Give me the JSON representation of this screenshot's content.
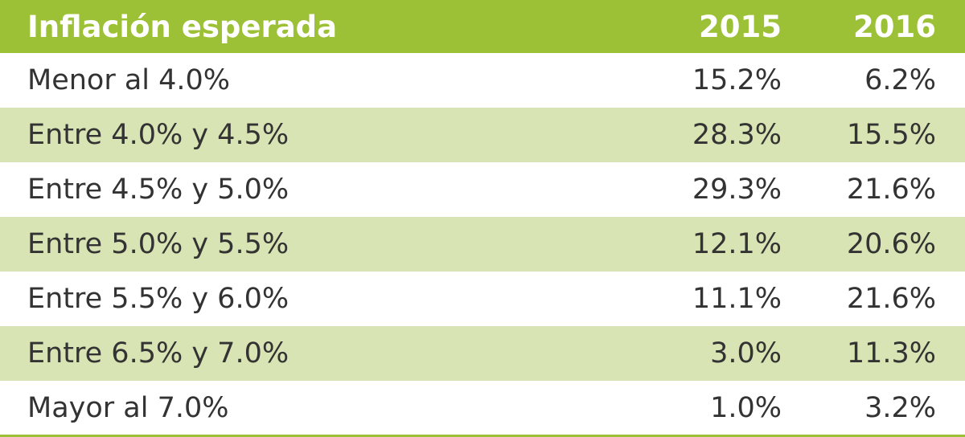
{
  "chart_data": {
    "type": "table",
    "columns": [
      "Inflación esperada",
      "2015",
      "2016"
    ],
    "rows": [
      {
        "label": "Menor al 4.0%",
        "y2015": "15.2%",
        "y2016": "6.2%"
      },
      {
        "label": "Entre 4.0% y 4.5%",
        "y2015": "28.3%",
        "y2016": "15.5%"
      },
      {
        "label": "Entre 4.5% y 5.0%",
        "y2015": "29.3%",
        "y2016": "21.6%"
      },
      {
        "label": "Entre 5.0% y 5.5%",
        "y2015": "12.1%",
        "y2016": "20.6%"
      },
      {
        "label": "Entre 5.5% y 6.0%",
        "y2015": "11.1%",
        "y2016": "21.6%"
      },
      {
        "label": "Entre 6.5% y 7.0%",
        "y2015": "3.0%",
        "y2016": "11.3%"
      },
      {
        "label": "Mayor al 7.0%",
        "y2015": "1.0%",
        "y2016": "3.2%"
      }
    ],
    "colors": {
      "header_bg": "#9cc136",
      "header_text": "#ffffff",
      "alt_row_bg": "#d9e4b4",
      "row_bg": "#ffffff",
      "text": "#333333"
    }
  }
}
